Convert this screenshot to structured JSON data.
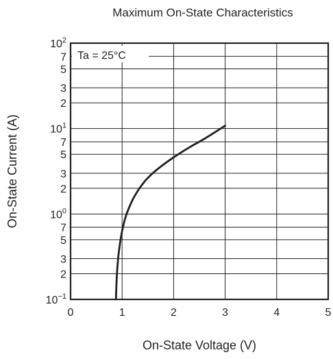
{
  "chart_data": {
    "type": "line",
    "title": "Maximum On-State Characteristics",
    "xlabel": "On-State Voltage  (V)",
    "ylabel": "On-State Current  (A)",
    "annotation": "Ta = 25°C",
    "xlim": [
      0,
      5
    ],
    "ylim": [
      0.1,
      100
    ],
    "yscale": "log",
    "grid": true,
    "x_ticks": [
      "0",
      "1",
      "2",
      "3",
      "4",
      "5"
    ],
    "y_ticks": [
      {
        "value": 100,
        "base": "10",
        "exp": "2"
      },
      {
        "value": 70,
        "label": "7"
      },
      {
        "value": 50,
        "label": "5"
      },
      {
        "value": 30,
        "label": "3"
      },
      {
        "value": 20,
        "label": "2"
      },
      {
        "value": 10,
        "base": "10",
        "exp": "1"
      },
      {
        "value": 7,
        "label": "7"
      },
      {
        "value": 5,
        "label": "5"
      },
      {
        "value": 3,
        "label": "3"
      },
      {
        "value": 2,
        "label": "2"
      },
      {
        "value": 1,
        "base": "10",
        "exp": "0"
      },
      {
        "value": 0.7,
        "label": "7"
      },
      {
        "value": 0.5,
        "label": "5"
      },
      {
        "value": 0.3,
        "label": "3"
      },
      {
        "value": 0.2,
        "label": "2"
      },
      {
        "value": 0.1,
        "base": "10",
        "exp": "−1"
      }
    ],
    "series": [
      {
        "x": [
          0.88,
          0.9,
          0.93,
          0.97,
          1.0,
          1.05,
          1.1,
          1.2,
          1.3,
          1.4,
          1.5,
          1.7,
          2.0,
          2.3,
          2.6,
          3.0
        ],
        "y": [
          0.1,
          0.2,
          0.33,
          0.5,
          0.63,
          0.85,
          1.05,
          1.45,
          1.85,
          2.25,
          2.65,
          3.4,
          4.6,
          6.0,
          7.6,
          10.8
        ]
      }
    ]
  }
}
